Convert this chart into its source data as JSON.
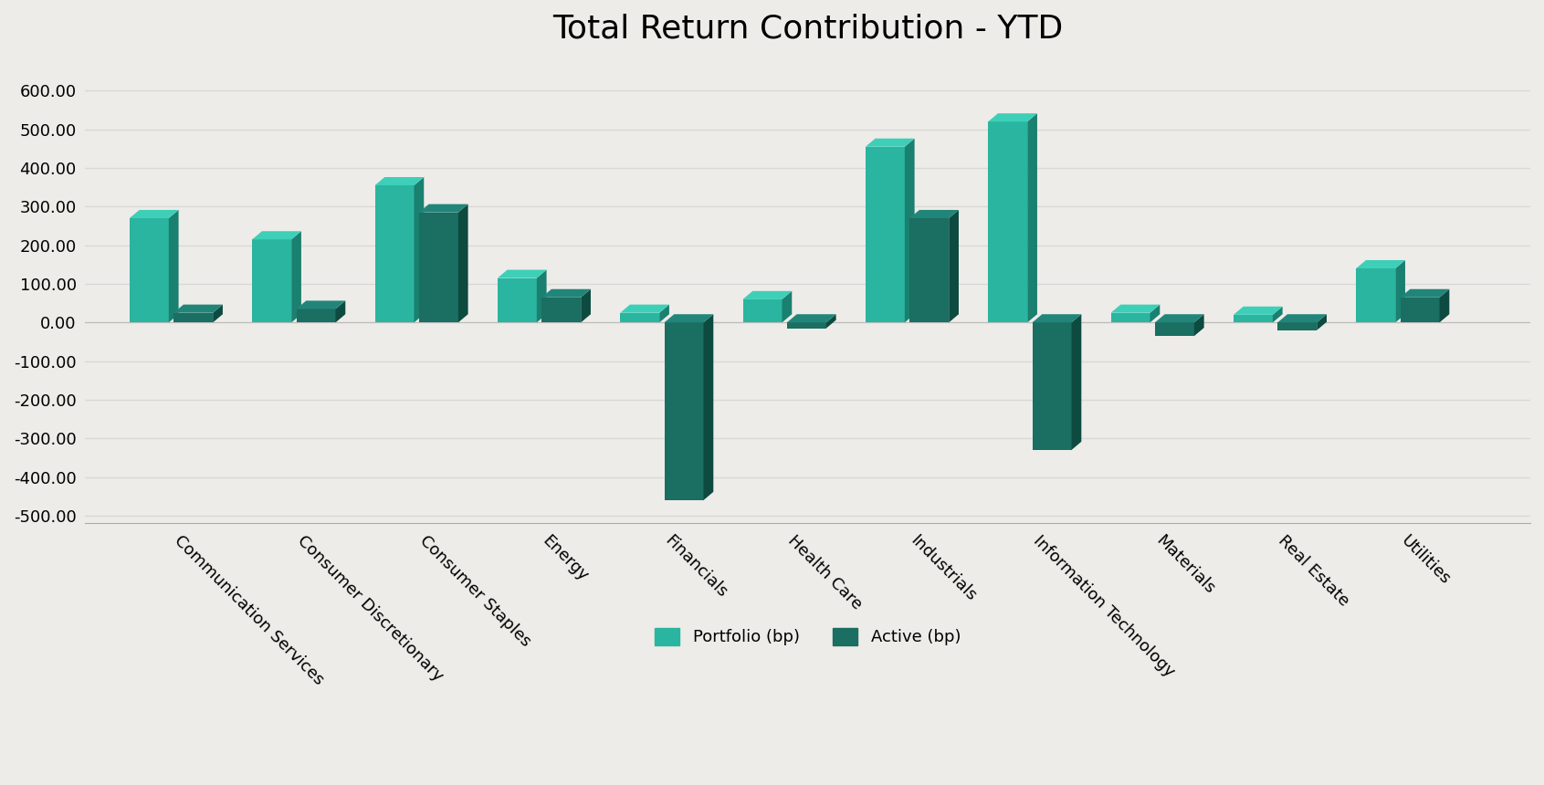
{
  "title": "Total Return Contribution - YTD",
  "categories": [
    "Communication Services",
    "Consumer Discretionary",
    "Consumer Staples",
    "Energy",
    "Financials",
    "Health Care",
    "Industrials",
    "Information Technology",
    "Materials",
    "Real Estate",
    "Utilities"
  ],
  "portfolio_values": [
    270,
    215,
    355,
    115,
    25,
    60,
    455,
    520,
    25,
    20,
    140
  ],
  "active_values": [
    25,
    35,
    285,
    65,
    -460,
    -15,
    270,
    -330,
    -35,
    -20,
    65
  ],
  "portfolio_face": "#2ab5a0",
  "portfolio_side": "#1a8070",
  "portfolio_top": "#3ecfb8",
  "active_face": "#1a6e62",
  "active_side": "#0d4a40",
  "active_top": "#22857a",
  "background_color": "#eeece8",
  "ylim": [
    -520,
    670
  ],
  "yticks": [
    -500,
    -400,
    -300,
    -200,
    -100,
    0,
    100,
    200,
    300,
    400,
    500,
    600
  ],
  "legend_portfolio": "Portfolio (bp)",
  "legend_active": "Active (bp)",
  "title_fontsize": 26,
  "bar_width": 0.32,
  "grid_color": "#d8d8d8",
  "tick_fontsize": 13,
  "label_fontsize": 13
}
